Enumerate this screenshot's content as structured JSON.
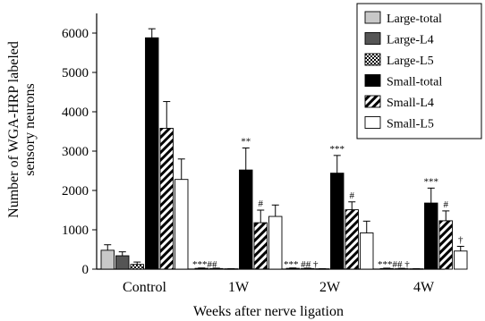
{
  "chart_data": {
    "type": "bar",
    "xlabel": "Weeks after nerve ligation",
    "ylabel": [
      "Number of WGA-HRP labeled",
      "sensory neurons"
    ],
    "ylim": [
      0,
      6500
    ],
    "yticks": [
      0,
      1000,
      2000,
      3000,
      4000,
      5000,
      6000
    ],
    "grid": false,
    "legend_position": "top-right",
    "categories": [
      "Control",
      "1W",
      "2W",
      "4W"
    ],
    "series": [
      {
        "name": "Large-total",
        "pattern": "light-gray",
        "values": [
          480,
          20,
          20,
          15
        ],
        "errors": [
          140,
          10,
          10,
          10
        ]
      },
      {
        "name": "Large-L4",
        "pattern": "dark-gray",
        "values": [
          340,
          15,
          15,
          10
        ],
        "errors": [
          100,
          10,
          10,
          10
        ]
      },
      {
        "name": "Large-L5",
        "pattern": "checker",
        "values": [
          120,
          8,
          8,
          8
        ],
        "errors": [
          60,
          5,
          5,
          5
        ]
      },
      {
        "name": "Small-total",
        "pattern": "black",
        "values": [
          5880,
          2520,
          2440,
          1680
        ],
        "errors": [
          230,
          560,
          450,
          380
        ]
      },
      {
        "name": "Small-L4",
        "pattern": "hatch",
        "values": [
          3580,
          1180,
          1510,
          1230
        ],
        "errors": [
          680,
          320,
          200,
          250
        ]
      },
      {
        "name": "Small-L5",
        "pattern": "white",
        "values": [
          2280,
          1340,
          920,
          460
        ],
        "errors": [
          520,
          290,
          300,
          120
        ]
      }
    ],
    "annotations": [
      {
        "category": 1,
        "series": 3,
        "text": "**"
      },
      {
        "category": 1,
        "series": 4,
        "text": "#"
      },
      {
        "category": 1,
        "series": 0,
        "text": "***##"
      },
      {
        "category": 2,
        "series": 3,
        "text": "***"
      },
      {
        "category": 2,
        "series": 4,
        "text": "#"
      },
      {
        "category": 2,
        "series": 0,
        "text": "*** ## †"
      },
      {
        "category": 3,
        "series": 3,
        "text": "***"
      },
      {
        "category": 3,
        "series": 4,
        "text": "#"
      },
      {
        "category": 3,
        "series": 5,
        "text": "†"
      },
      {
        "category": 3,
        "series": 0,
        "text": "***## †"
      }
    ]
  }
}
